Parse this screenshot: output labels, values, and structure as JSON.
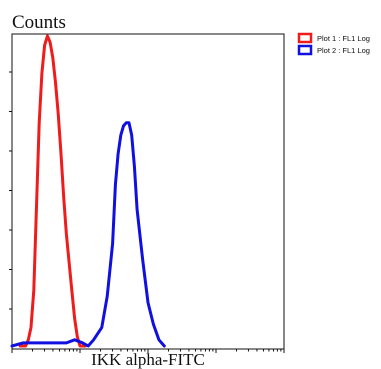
{
  "chart_data": {
    "type": "line",
    "title": "",
    "ylabel": "Counts",
    "xlabel": "IKK alpha-FITC",
    "x_scale": "log",
    "grid": false,
    "legend_position": "top-right",
    "series": [
      {
        "name": "Plot 1 : FL1 Log",
        "color": "#ee1c1c",
        "points": [
          [
            0.03,
            0
          ],
          [
            0.05,
            0
          ],
          [
            0.06,
            2
          ],
          [
            0.07,
            6
          ],
          [
            0.08,
            18
          ],
          [
            0.09,
            45
          ],
          [
            0.1,
            72
          ],
          [
            0.11,
            88
          ],
          [
            0.12,
            97
          ],
          [
            0.13,
            100
          ],
          [
            0.14,
            98
          ],
          [
            0.15,
            93
          ],
          [
            0.16,
            85
          ],
          [
            0.17,
            75
          ],
          [
            0.18,
            62
          ],
          [
            0.19,
            48
          ],
          [
            0.2,
            36
          ],
          [
            0.21,
            27
          ],
          [
            0.22,
            18
          ],
          [
            0.23,
            9
          ],
          [
            0.24,
            3
          ],
          [
            0.25,
            0
          ],
          [
            0.27,
            0
          ]
        ]
      },
      {
        "name": "Plot 2 : FL1 Log",
        "color": "#1010e0",
        "points": [
          [
            0.0,
            0
          ],
          [
            0.04,
            1
          ],
          [
            0.1,
            1
          ],
          [
            0.16,
            1
          ],
          [
            0.2,
            1
          ],
          [
            0.23,
            2
          ],
          [
            0.26,
            1
          ],
          [
            0.28,
            0
          ],
          [
            0.3,
            2
          ],
          [
            0.33,
            6
          ],
          [
            0.35,
            16
          ],
          [
            0.37,
            33
          ],
          [
            0.38,
            52
          ],
          [
            0.39,
            62
          ],
          [
            0.4,
            68
          ],
          [
            0.41,
            71
          ],
          [
            0.42,
            72
          ],
          [
            0.43,
            72
          ],
          [
            0.44,
            68
          ],
          [
            0.45,
            58
          ],
          [
            0.46,
            44
          ],
          [
            0.48,
            28
          ],
          [
            0.5,
            14
          ],
          [
            0.52,
            7
          ],
          [
            0.54,
            2
          ],
          [
            0.56,
            0
          ]
        ]
      }
    ],
    "ylim": [
      0,
      100
    ],
    "xlim": [
      0,
      1
    ]
  }
}
